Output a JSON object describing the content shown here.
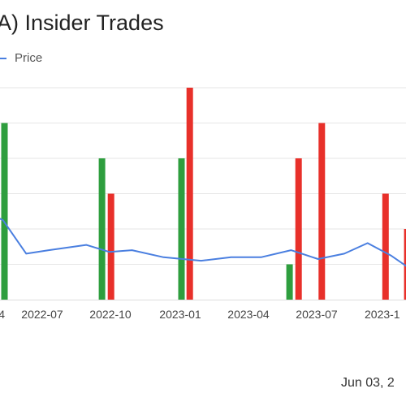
{
  "chart_data": {
    "type": "bar",
    "title": "A) Insider Trades",
    "legend": [
      {
        "name": "Price",
        "color": "#4a7fe0",
        "kind": "line"
      }
    ],
    "legend_placement": "top-left",
    "x_tick_labels": [
      "4",
      "2022-07",
      "2022-10",
      "2023-01",
      "2023-04",
      "2023-07",
      "2023-1"
    ],
    "x_axis_range": [
      "2022-04-01",
      "2023-10-31"
    ],
    "y_axis_range": [
      0,
      6
    ],
    "grid": true,
    "buy_color": "#2e9e3e",
    "sell_color": "#e8302a",
    "bars": [
      {
        "date": "2022-05-03",
        "side": "buy",
        "value": 5
      },
      {
        "date": "2022-09-10",
        "side": "buy",
        "value": 4
      },
      {
        "date": "2022-09-22",
        "side": "sell",
        "value": 3
      },
      {
        "date": "2022-12-25",
        "side": "buy",
        "value": 4
      },
      {
        "date": "2023-01-05",
        "side": "sell",
        "value": 6
      },
      {
        "date": "2023-05-18",
        "side": "buy",
        "value": 1
      },
      {
        "date": "2023-05-30",
        "side": "sell",
        "value": 4
      },
      {
        "date": "2023-06-30",
        "side": "sell",
        "value": 5
      },
      {
        "date": "2023-09-23",
        "side": "sell",
        "value": 3
      },
      {
        "date": "2023-10-22",
        "side": "sell",
        "value": 2
      }
    ],
    "price_series": {
      "name": "Price",
      "color": "#4a7fe0",
      "x": [
        "2022-04-01",
        "2022-05-01",
        "2022-06-01",
        "2022-07-01",
        "2022-08-20",
        "2022-09-20",
        "2022-10-20",
        "2022-12-01",
        "2023-01-20",
        "2023-03-01",
        "2023-04-10",
        "2023-05-20",
        "2023-06-25",
        "2023-07-30",
        "2023-08-30",
        "2023-09-30",
        "2023-10-31"
      ],
      "y": [
        2.55,
        2.25,
        1.3,
        1.4,
        1.55,
        1.35,
        1.4,
        1.2,
        1.1,
        1.2,
        1.2,
        1.4,
        1.15,
        1.3,
        1.6,
        1.25,
        0.8
      ]
    }
  },
  "footer": {
    "date_text": "Jun 03, 2"
  }
}
